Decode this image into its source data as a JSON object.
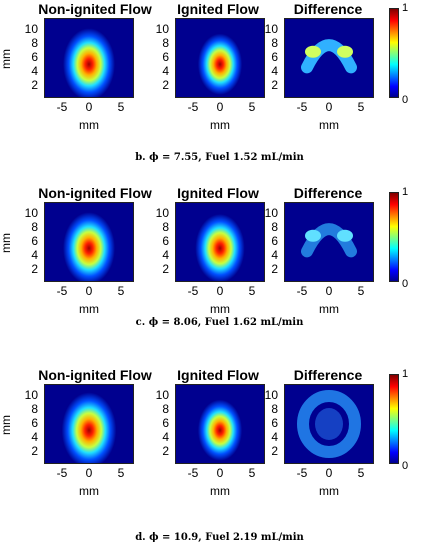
{
  "chart_data": [
    {
      "type": "heatmap",
      "caption": "b. ϕ = 7.55, Fuel 1.52 mL/min",
      "panels": [
        {
          "title": "Non-ignited Flow",
          "xlabel": "mm",
          "ylabel": "mm",
          "peak": 1.0,
          "pattern": "plume",
          "spread": 1.0
        },
        {
          "title": "Ignited Flow",
          "xlabel": "mm",
          "ylabel": "",
          "peak": 1.0,
          "pattern": "plume",
          "spread": 0.85
        },
        {
          "title": "Difference",
          "xlabel": "",
          "ylabel": "",
          "peak": 0.5,
          "pattern": "arch",
          "spread": 1.0
        }
      ],
      "xticks": [
        "-5",
        "0",
        "5"
      ],
      "yticks": [
        "10",
        "8",
        "6",
        "4",
        "2"
      ],
      "xlim": [
        -8,
        8
      ],
      "ylim": [
        0,
        12
      ],
      "colorbar": {
        "min": "0",
        "max": "1",
        "colormap": "jet"
      }
    },
    {
      "type": "heatmap",
      "caption": "c. ϕ = 8.06, Fuel 1.62 mL/min",
      "panels": [
        {
          "title": "Non-ignited Flow",
          "xlabel": "",
          "ylabel": "mm",
          "peak": 1.0,
          "pattern": "plume",
          "spread": 1.0
        },
        {
          "title": "Ignited Flow",
          "xlabel": "",
          "ylabel": "",
          "peak": 1.0,
          "pattern": "plume",
          "spread": 0.95
        },
        {
          "title": "Difference",
          "xlabel": "",
          "ylabel": "",
          "peak": 0.3,
          "pattern": "arch",
          "spread": 1.0
        }
      ],
      "xticks": [
        "-5",
        "0",
        "5"
      ],
      "yticks": [
        "10",
        "8",
        "6",
        "4",
        "2"
      ],
      "xlim": [
        -8,
        8
      ],
      "ylim": [
        0,
        12
      ],
      "colorbar": {
        "min": "0",
        "max": "1",
        "colormap": "jet"
      },
      "xlabel": "mm"
    },
    {
      "type": "heatmap",
      "caption": "d. ϕ = 10.9, Fuel 2.19 mL/min",
      "panels": [
        {
          "title": "Non-ignited Flow",
          "xlabel": "",
          "ylabel": "mm",
          "peak": 1.0,
          "pattern": "plume",
          "spread": 1.05
        },
        {
          "title": "Ignited Flow",
          "xlabel": "",
          "ylabel": "",
          "peak": 1.0,
          "pattern": "plume",
          "spread": 0.85
        },
        {
          "title": "Difference",
          "xlabel": "",
          "ylabel": "",
          "peak": 0.3,
          "pattern": "ring",
          "spread": 1.0
        }
      ],
      "xticks": [
        "-5",
        "0",
        "5"
      ],
      "yticks": [
        "10",
        "8",
        "6",
        "4",
        "2"
      ],
      "xlim": [
        -8,
        8
      ],
      "ylim": [
        0,
        12
      ],
      "colorbar": {
        "min": "0",
        "max": "1",
        "colormap": "jet"
      },
      "xlabel": "mm"
    }
  ]
}
